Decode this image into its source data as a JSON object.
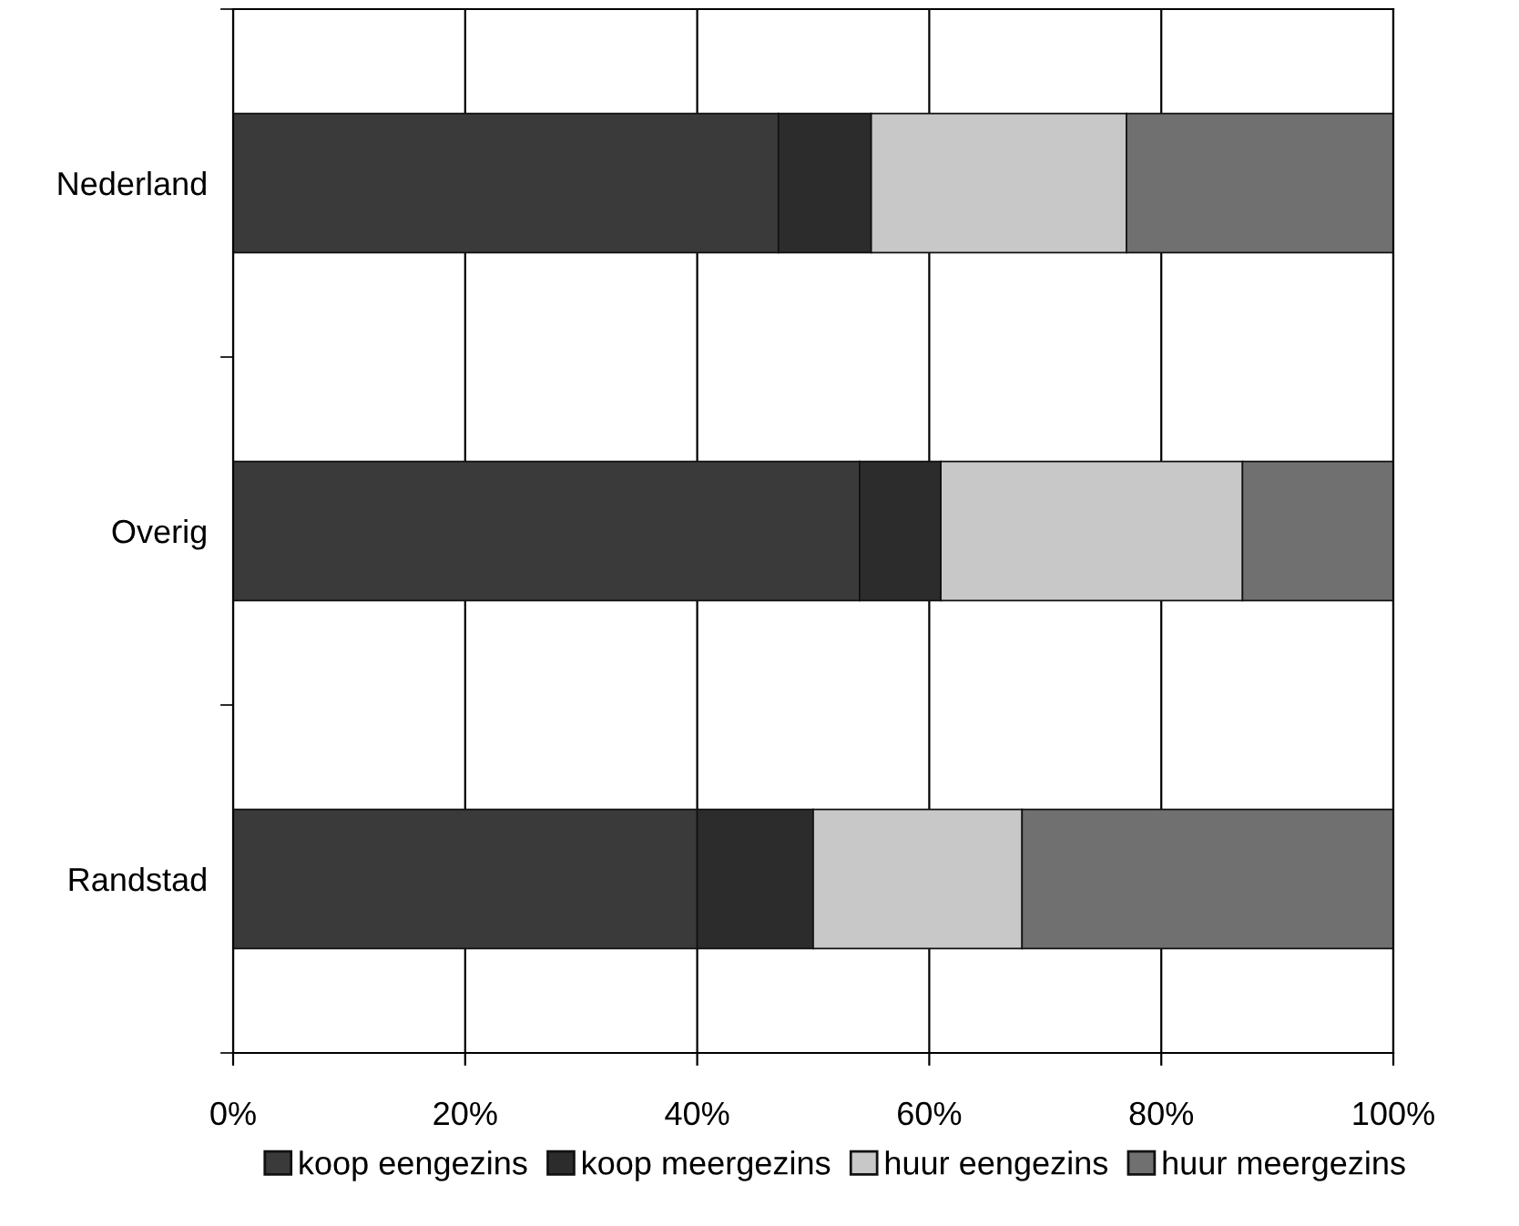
{
  "chart_data": {
    "type": "bar",
    "orientation": "horizontal",
    "stacked": true,
    "categories": [
      "Nederland",
      "Overig",
      "Randstad"
    ],
    "series": [
      {
        "name": "koop eengezins",
        "color": "#3a3a3a",
        "values": [
          47,
          54,
          40
        ]
      },
      {
        "name": "koop meergezins",
        "color": "#2c2c2c",
        "values": [
          8,
          7,
          10
        ]
      },
      {
        "name": "huur eengezins",
        "color": "#c8c8c8",
        "values": [
          22,
          26,
          18
        ]
      },
      {
        "name": "huur meergezins",
        "color": "#707070",
        "values": [
          23,
          13,
          32
        ]
      }
    ],
    "xlim": [
      0,
      100
    ],
    "xticks": [
      {
        "value": 0,
        "label": "0%"
      },
      {
        "value": 20,
        "label": "20%"
      },
      {
        "value": 40,
        "label": "40%"
      },
      {
        "value": 60,
        "label": "60%"
      },
      {
        "value": 80,
        "label": "80%"
      },
      {
        "value": 100,
        "label": "100%"
      }
    ],
    "grid": "x",
    "legend": "bottom"
  }
}
